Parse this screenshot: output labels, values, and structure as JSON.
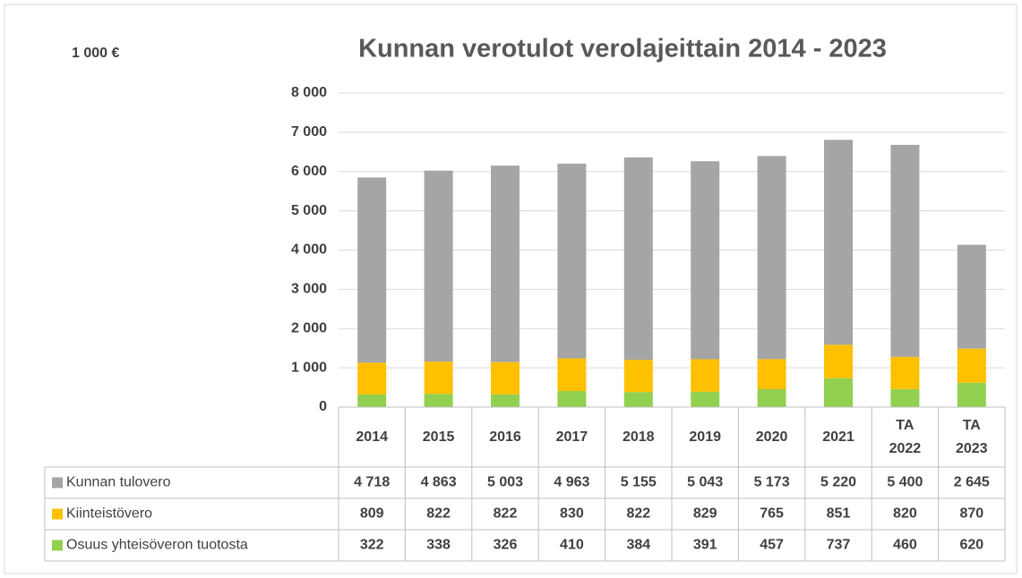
{
  "chart_data": {
    "type": "stacked_bar",
    "title": "Kunnan verotulot verolajeittain 2014 - 2023",
    "unit_label": "1 000 €",
    "categories": [
      "2014",
      "2015",
      "2016",
      "2017",
      "2018",
      "2019",
      "2020",
      "2021",
      "TA\n2022",
      "TA\n2023"
    ],
    "series": [
      {
        "name": "Kunnan tulovero",
        "color": "#a5a5a5",
        "values": [
          4718,
          4863,
          5003,
          4963,
          5155,
          5043,
          5173,
          5220,
          5400,
          2645
        ],
        "value_labels": [
          "4 718",
          "4 863",
          "5 003",
          "4 963",
          "5 155",
          "5 043",
          "5 173",
          "5 220",
          "5 400",
          "2 645"
        ]
      },
      {
        "name": "Kiinteistövero",
        "color": "#ffc000",
        "values": [
          809,
          822,
          822,
          830,
          822,
          829,
          765,
          851,
          820,
          870
        ]
      },
      {
        "name": "Osuus yhteisöveron tuotosta",
        "color": "#92d050",
        "values": [
          322,
          338,
          326,
          410,
          384,
          391,
          457,
          737,
          460,
          620
        ]
      }
    ],
    "ylim": [
      0,
      8000
    ],
    "yticks": [
      0,
      {
        "value": 1000,
        "label": "1 000"
      },
      {
        "value": 2000,
        "label": "2 000"
      },
      {
        "value": 3000,
        "label": "3 000"
      },
      {
        "value": 4000,
        "label": "4 000"
      },
      {
        "value": 5000,
        "label": "5 000"
      },
      {
        "value": 6000,
        "label": "6 000"
      },
      {
        "value": 7000,
        "label": "7 000"
      },
      {
        "value": 8000,
        "label": "8 000"
      }
    ],
    "grid": true
  }
}
